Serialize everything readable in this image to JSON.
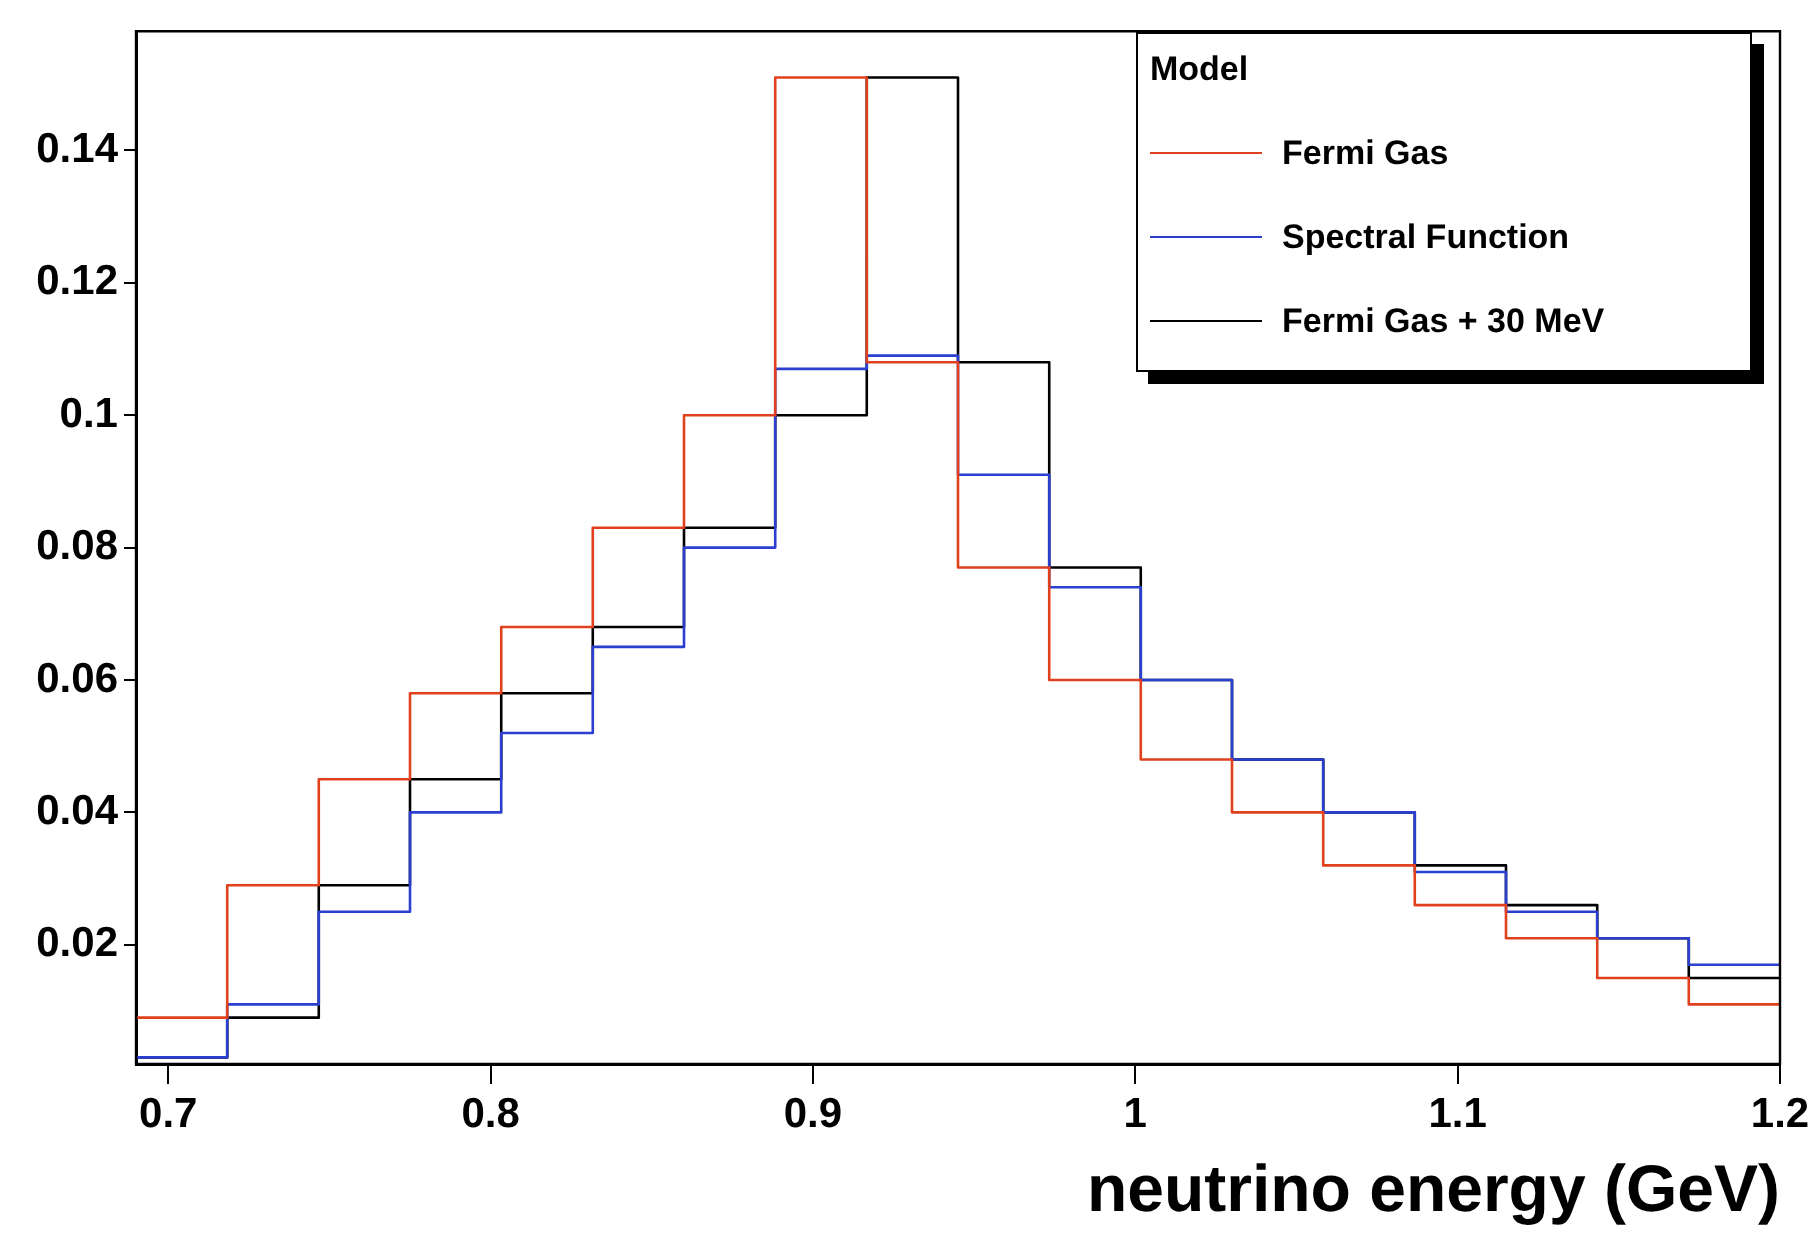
{
  "chart_data": {
    "type": "histogram",
    "xlabel": "neutrino energy (GeV)",
    "legend_title": "Model",
    "legend": "top right",
    "grid": false,
    "bins": [
      0.69,
      0.7183,
      0.7467,
      0.775,
      0.8033,
      0.8317,
      0.86,
      0.8883,
      0.9167,
      0.945,
      0.9733,
      1.0017,
      1.03,
      1.0583,
      1.0867,
      1.115,
      1.1433,
      1.1717,
      1.2
    ],
    "xlim": [
      0.69,
      1.2
    ],
    "xticks": [
      0.7,
      0.8,
      0.9,
      1,
      1.1,
      1.2
    ],
    "ylim": [
      0.002,
      0.158
    ],
    "yticks": [
      0.02,
      0.04,
      0.06,
      0.08,
      0.1,
      0.12,
      0.14
    ],
    "series": [
      {
        "name": "Fermi Gas",
        "color": "#e0401c",
        "values": [
          0.009,
          0.029,
          0.045,
          0.058,
          0.068,
          0.083,
          0.1,
          0.151,
          0.108,
          0.077,
          0.06,
          0.048,
          0.04,
          0.032,
          0.026,
          0.021,
          0.015,
          0.011
        ]
      },
      {
        "name": "Spectral Function",
        "color": "#2a3fd0",
        "values": [
          0.003,
          0.011,
          0.025,
          0.04,
          0.052,
          0.065,
          0.08,
          0.107,
          0.109,
          0.091,
          0.074,
          0.06,
          0.048,
          0.04,
          0.031,
          0.025,
          0.021,
          0.017
        ]
      },
      {
        "name": "Fermi Gas + 30 MeV",
        "color": "#000000",
        "values": [
          0.003,
          0.009,
          0.029,
          0.045,
          0.058,
          0.068,
          0.083,
          0.1,
          0.151,
          0.108,
          0.077,
          0.06,
          0.048,
          0.04,
          0.032,
          0.026,
          0.021,
          0.015
        ]
      }
    ]
  }
}
